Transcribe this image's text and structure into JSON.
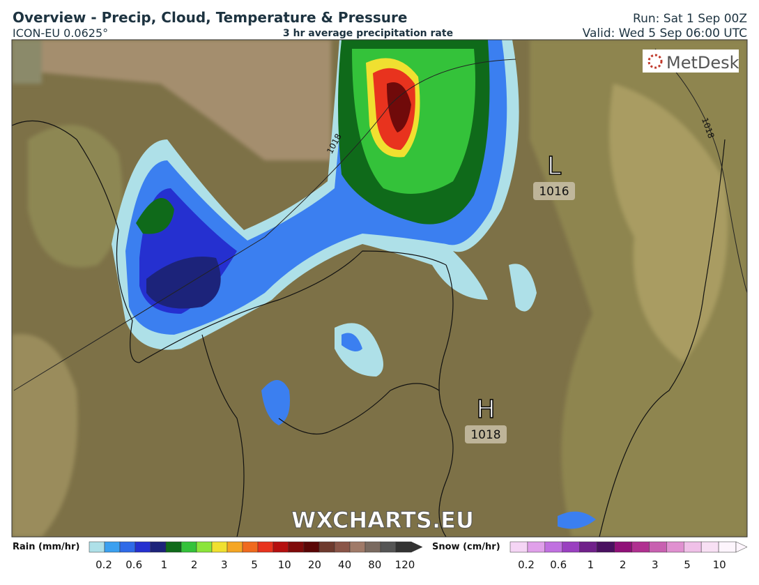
{
  "header": {
    "title": "Overview - Precip, Cloud, Temperature & Pressure",
    "model": "ICON-EU 0.0625°",
    "subtitle": "3 hr average precipitation rate",
    "run": "Run: Sat 1 Sep 00Z",
    "valid": "Valid: Wed 5 Sep 06:00 UTC"
  },
  "map": {
    "logo": "MetDesk",
    "watermark": "WXCHARTS.EU",
    "isobar_labels": [
      "1018",
      "1018"
    ],
    "pressure_centers": [
      {
        "symbol": "L",
        "value": "1016"
      },
      {
        "symbol": "H",
        "value": "1018"
      }
    ]
  },
  "legend": {
    "rain": {
      "label": "Rain (mm/hr)",
      "ticks": [
        "0.2",
        "0.6",
        "1",
        "2",
        "3",
        "5",
        "10",
        "20",
        "40",
        "80",
        "120"
      ]
    },
    "snow": {
      "label": "Snow (cm/hr)",
      "ticks": [
        "0.2",
        "0.6",
        "1",
        "2",
        "3",
        "5",
        "10"
      ]
    }
  }
}
